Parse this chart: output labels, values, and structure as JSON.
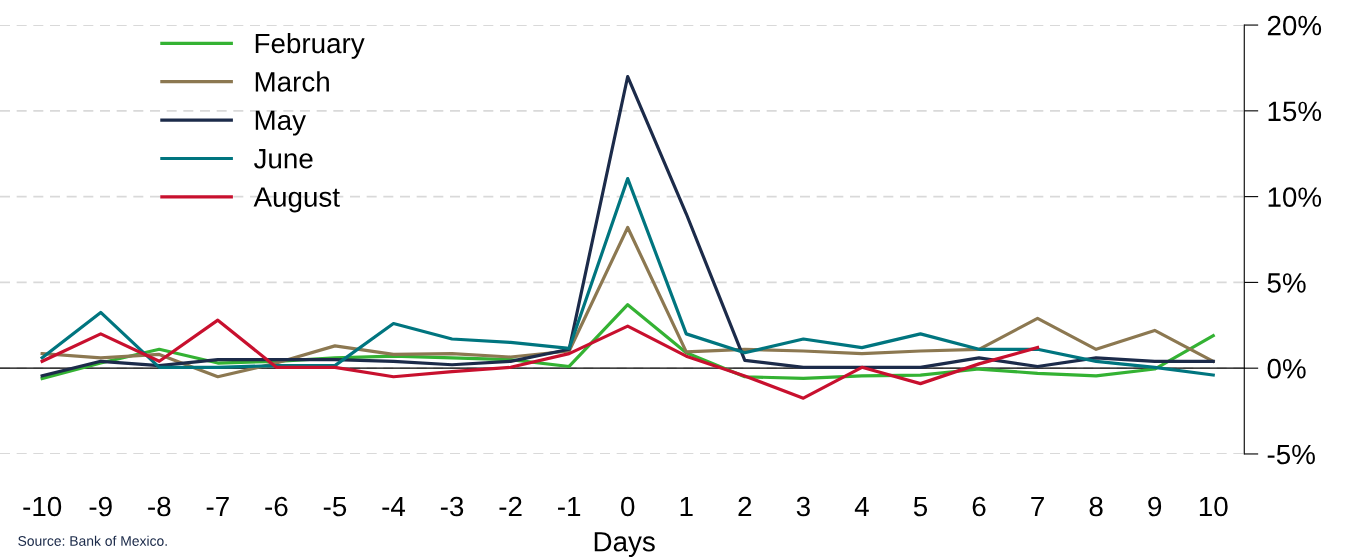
{
  "chart_data": {
    "type": "line",
    "xlabel": "Days",
    "categories": [
      "-10",
      "-9",
      "-8",
      "-7",
      "-6",
      "-5",
      "-4",
      "-3",
      "-2",
      "-1",
      "0",
      "1",
      "2",
      "3",
      "4",
      "5",
      "6",
      "7",
      "8",
      "9",
      "10"
    ],
    "series": [
      {
        "name": "February",
        "color": "#34b233",
        "values": [
          -0.6,
          0.3,
          1.1,
          0.3,
          0.4,
          0.6,
          0.7,
          0.6,
          0.5,
          0.1,
          3.7,
          0.9,
          -0.5,
          -0.6,
          -0.45,
          -0.4,
          -0.05,
          -0.3,
          -0.45,
          -0.05,
          1.9
        ]
      },
      {
        "name": "March",
        "color": "#8c7851",
        "values": [
          0.85,
          0.6,
          0.8,
          -0.5,
          0.3,
          1.3,
          0.8,
          0.85,
          0.65,
          1.0,
          8.2,
          0.95,
          1.1,
          1.0,
          0.85,
          1.0,
          1.1,
          2.9,
          1.1,
          2.2,
          0.4
        ]
      },
      {
        "name": "May",
        "color": "#1c2b4a",
        "values": [
          -0.45,
          0.4,
          0.15,
          0.5,
          0.5,
          0.5,
          0.4,
          0.2,
          0.4,
          1.1,
          17.0,
          9.0,
          0.45,
          0.05,
          0.05,
          0.05,
          0.6,
          0.1,
          0.6,
          0.4,
          0.4
        ]
      },
      {
        "name": "June",
        "color": "#00757f",
        "values": [
          0.6,
          3.25,
          0.05,
          0.05,
          0.15,
          0.15,
          2.6,
          1.7,
          1.5,
          1.15,
          11.05,
          2.0,
          0.9,
          1.7,
          1.2,
          2.0,
          1.1,
          1.1,
          0.4,
          0.05,
          -0.4
        ]
      },
      {
        "name": "August",
        "color": "#c8102e",
        "values": [
          0.4,
          2.0,
          0.4,
          2.8,
          0.05,
          0.05,
          -0.5,
          -0.2,
          0.05,
          0.85,
          2.45,
          0.7,
          -0.45,
          -1.75,
          0.05,
          -0.9,
          0.25,
          1.2,
          null,
          null,
          null
        ]
      }
    ],
    "ylim": [
      -5,
      20
    ],
    "yticks": [
      {
        "value": -5,
        "label": "-5%"
      },
      {
        "value": 0,
        "label": "0%"
      },
      {
        "value": 5,
        "label": "5%"
      },
      {
        "value": 10,
        "label": "10%"
      },
      {
        "value": 15,
        "label": "15%"
      },
      {
        "value": 20,
        "label": "20%"
      }
    ],
    "grid": "y",
    "legend": "top left",
    "marker": "none",
    "line_style": "solid",
    "annotations": [
      "Source: Bank of Mexico."
    ]
  }
}
